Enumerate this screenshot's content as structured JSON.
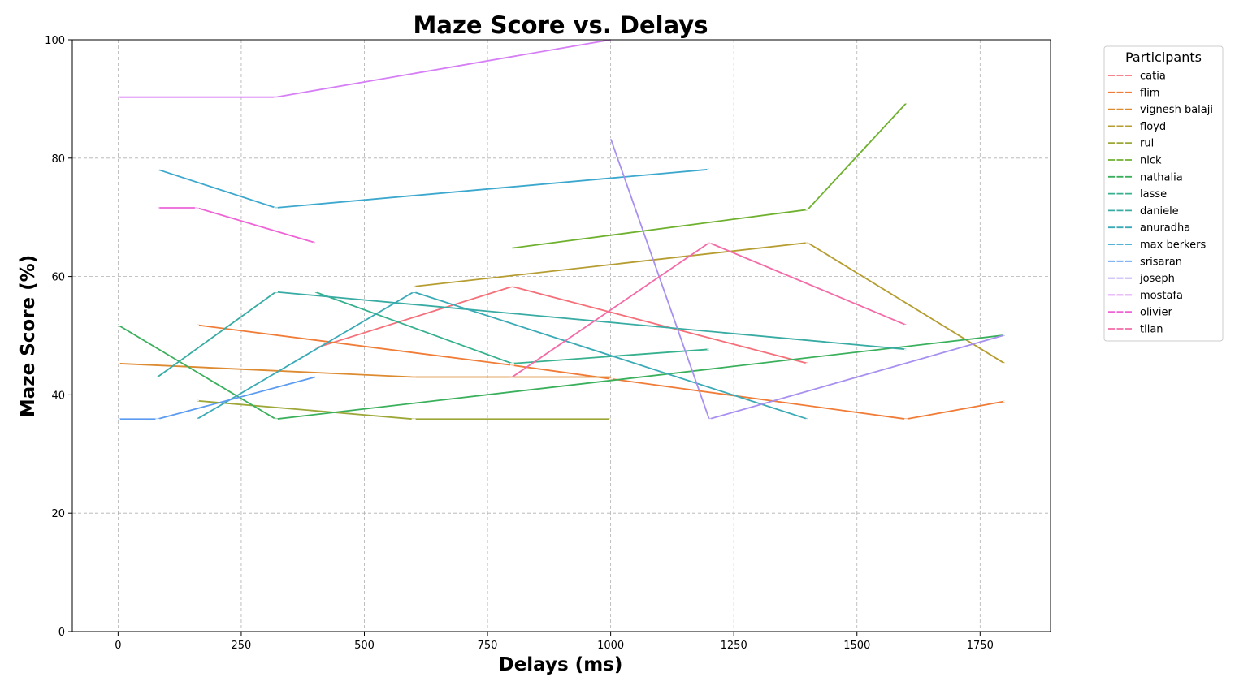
{
  "chart_data": {
    "type": "line",
    "title": "Maze Score vs. Delays",
    "xlabel": "Delays (ms)",
    "ylabel": "Maze Score (%)",
    "xlim": [
      -93,
      1893
    ],
    "ylim": [
      0,
      100
    ],
    "xticks": [
      0,
      250,
      500,
      750,
      1000,
      1250,
      1500,
      1750
    ],
    "yticks": [
      0,
      20,
      40,
      60,
      80,
      100
    ],
    "grid": true,
    "legend": {
      "title": "Participants",
      "placement": "outside-top-right"
    },
    "series": [
      {
        "name": "catia",
        "color": "#f5707a",
        "points": [
          [
            400,
            47.9
          ],
          [
            800,
            58.3
          ],
          [
            1400,
            45.3
          ]
        ]
      },
      {
        "name": "flim",
        "color": "#f07c37",
        "points": [
          [
            160,
            51.8
          ],
          [
            800,
            45.0
          ],
          [
            1000,
            42.7
          ],
          [
            1600,
            35.9
          ],
          [
            1800,
            38.9
          ]
        ]
      },
      {
        "name": "vignesh balaji",
        "color": "#dd8a30",
        "points": [
          [
            0,
            45.3
          ],
          [
            600,
            43.0
          ],
          [
            1000,
            43.0
          ]
        ]
      },
      {
        "name": "floyd",
        "color": "#b69d31",
        "points": [
          [
            600,
            58.3
          ],
          [
            1400,
            65.7
          ],
          [
            1800,
            45.3
          ]
        ]
      },
      {
        "name": "rui",
        "color": "#9da737",
        "points": [
          [
            160,
            39.0
          ],
          [
            600,
            35.9
          ],
          [
            1000,
            35.9
          ]
        ]
      },
      {
        "name": "nick",
        "color": "#6fb12f",
        "points": [
          [
            800,
            64.8
          ],
          [
            1400,
            71.3
          ],
          [
            1600,
            89.3
          ]
        ]
      },
      {
        "name": "nathalia",
        "color": "#3bb05c",
        "points": [
          [
            0,
            51.8
          ],
          [
            320,
            35.9
          ],
          [
            1800,
            50.1
          ]
        ]
      },
      {
        "name": "lasse",
        "color": "#36b08e",
        "points": [
          [
            400,
            57.4
          ],
          [
            800,
            45.3
          ],
          [
            1200,
            47.7
          ]
        ]
      },
      {
        "name": "daniele",
        "color": "#38aba3",
        "points": [
          [
            80,
            43.0
          ],
          [
            320,
            57.4
          ],
          [
            1600,
            47.7
          ]
        ]
      },
      {
        "name": "anuradha",
        "color": "#3aaab6",
        "points": [
          [
            160,
            35.9
          ],
          [
            600,
            57.4
          ],
          [
            1400,
            35.9
          ]
        ]
      },
      {
        "name": "max berkers",
        "color": "#3da8ce",
        "points": [
          [
            80,
            78.1
          ],
          [
            320,
            71.6
          ],
          [
            1200,
            78.1
          ]
        ]
      },
      {
        "name": "srisaran",
        "color": "#5b9bf0",
        "points": [
          [
            0,
            35.9
          ],
          [
            80,
            35.9
          ],
          [
            400,
            43.0
          ]
        ]
      },
      {
        "name": "joseph",
        "color": "#a890f0",
        "points": [
          [
            1000,
            83.3
          ],
          [
            1200,
            35.9
          ],
          [
            1800,
            50.1
          ]
        ]
      },
      {
        "name": "mostafa",
        "color": "#d67ef5",
        "points": [
          [
            0,
            90.3
          ],
          [
            320,
            90.3
          ],
          [
            1000,
            100.0
          ]
        ]
      },
      {
        "name": "olivier",
        "color": "#ef63d6",
        "points": [
          [
            80,
            71.6
          ],
          [
            160,
            71.6
          ],
          [
            400,
            65.7
          ]
        ]
      },
      {
        "name": "tilan",
        "color": "#f36ca8",
        "points": [
          [
            800,
            43.0
          ],
          [
            1200,
            65.7
          ],
          [
            1600,
            51.8
          ]
        ]
      }
    ]
  }
}
